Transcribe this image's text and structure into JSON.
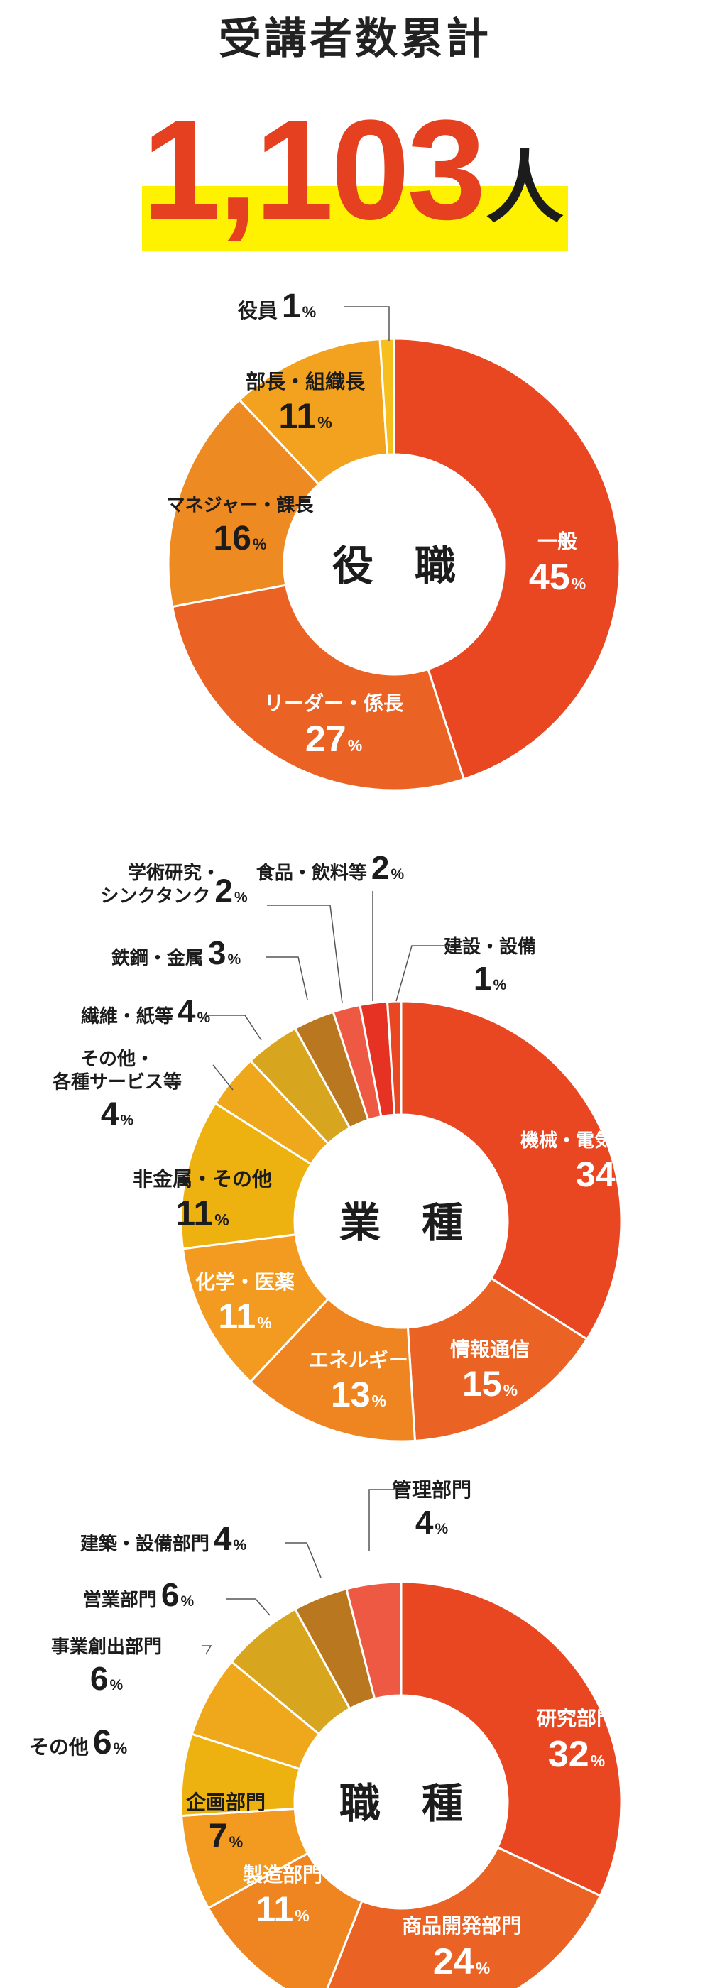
{
  "header": {
    "title": "受講者数累計",
    "total_value": "1,103",
    "total_unit": "人"
  },
  "chart_data": [
    {
      "type": "pie",
      "title": "役　職",
      "categories": [
        "一般",
        "リーダー・係長",
        "マネジャー・課長",
        "部長・組織長",
        "役員"
      ],
      "values": [
        45,
        27,
        16,
        11,
        1
      ],
      "unit": "%",
      "colors": [
        "#e84722",
        "#ea6324",
        "#ee8a22",
        "#f2a21e",
        "#f6bf1d"
      ]
    },
    {
      "type": "pie",
      "title": "業　種",
      "categories": [
        "機械・電気・電子等",
        "情報通信",
        "エネルギー",
        "化学・医薬",
        "非金属・その他",
        "その他・各種サービス等",
        "繊維・紙等",
        "鉄鋼・金属",
        "学術研究・シンクタンク",
        "食品・飲料等",
        "建設・設備"
      ],
      "values": [
        34,
        15,
        13,
        11,
        11,
        4,
        4,
        3,
        2,
        2,
        1
      ],
      "unit": "%",
      "colors": [
        "#e84722",
        "#ea6324",
        "#ef8520",
        "#f29b20",
        "#edb20f",
        "#efa81c",
        "#d7a51e",
        "#b9771f",
        "#ee5944",
        "#e53223",
        "#e84722"
      ]
    },
    {
      "type": "pie",
      "title": "職　種",
      "categories": [
        "研究部門",
        "商品開発部門",
        "製造部門",
        "企画部門",
        "その他",
        "事業創出部門",
        "営業部門",
        "建築・設備部門",
        "管理部門"
      ],
      "values": [
        32,
        24,
        11,
        7,
        6,
        6,
        6,
        4,
        4
      ],
      "unit": "%",
      "colors": [
        "#e84722",
        "#ea6324",
        "#ef8520",
        "#f29b20",
        "#edb20f",
        "#efa81c",
        "#d7a51e",
        "#b9771f",
        "#ee5944"
      ]
    }
  ]
}
